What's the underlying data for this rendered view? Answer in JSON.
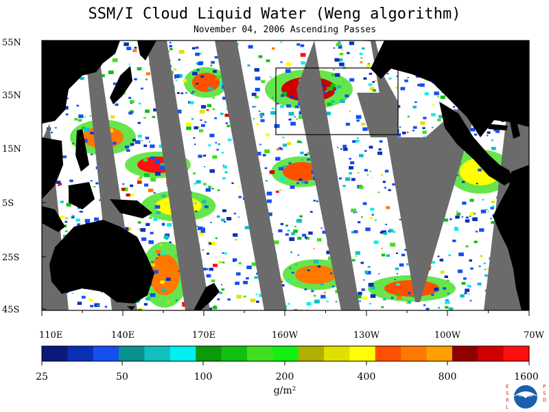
{
  "title": "SSM/I Cloud Liquid Water (Weng algorithm)",
  "subtitle": "November 04, 2006  Ascending Passes",
  "lat_labels": [
    "55N",
    "35N",
    "15N",
    "5S",
    "25S",
    "45S"
  ],
  "lon_labels": [
    "110E",
    "140E",
    "170E",
    "160W",
    "130W",
    "100W",
    "70W"
  ],
  "colorbar": {
    "colors": [
      "#0a1a7a",
      "#0a30b8",
      "#1450f0",
      "#0a9090",
      "#10c0c0",
      "#00f0f0",
      "#0a9a0a",
      "#10c010",
      "#40e020",
      "#12f012",
      "#b0b000",
      "#e0e000",
      "#ffff00",
      "#ff5000",
      "#ff7800",
      "#ffa000",
      "#900000",
      "#d00000",
      "#ff1010"
    ],
    "tick_labels": [
      "25",
      "50",
      "100",
      "200",
      "400",
      "800",
      "1600"
    ],
    "units": "g/m²"
  },
  "logo": {
    "name": "NOAA",
    "left_letters": "ESRL",
    "right_letters": "PSD"
  },
  "colors": {
    "land": "#000000",
    "no_data": "#6b6b6b",
    "ocean_clear": "#ffffff"
  }
}
